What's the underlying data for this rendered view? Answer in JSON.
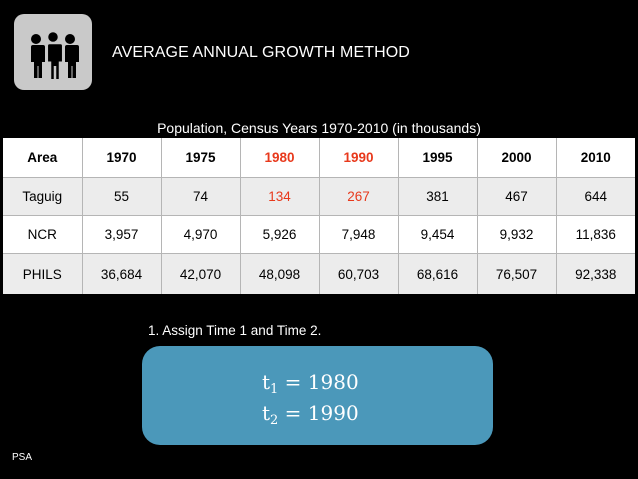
{
  "header": {
    "icon": "people-group-icon",
    "title": "AVERAGE ANNUAL GROWTH METHOD"
  },
  "table": {
    "caption": "Population, Census Years 1970-2010 (in thousands)",
    "columns": [
      "Area",
      "1970",
      "1975",
      "1980",
      "1990",
      "1995",
      "2000",
      "2010"
    ],
    "highlight_color": "#e8391c",
    "rows": [
      [
        "Taguig",
        "55",
        "74",
        "134",
        "267",
        "381",
        "467",
        "644"
      ],
      [
        "NCR",
        "3,957",
        "4,970",
        "5,926",
        "7,948",
        "9,454",
        "9,932",
        "11,836"
      ],
      [
        "PHILS",
        "36,684",
        "42,070",
        "48,098",
        "60,703",
        "68,616",
        "76,507",
        "92,338"
      ]
    ]
  },
  "step": {
    "text": "1. Assign Time 1 and Time 2."
  },
  "formula": {
    "t1_symbol": "t",
    "t1_sub": "1",
    "t1_value": " = 1980",
    "t2_symbol": "t",
    "t2_sub": "2",
    "t2_value": " = 1990",
    "box_color": "#4b98ba"
  },
  "footer": {
    "source": "PSA"
  }
}
